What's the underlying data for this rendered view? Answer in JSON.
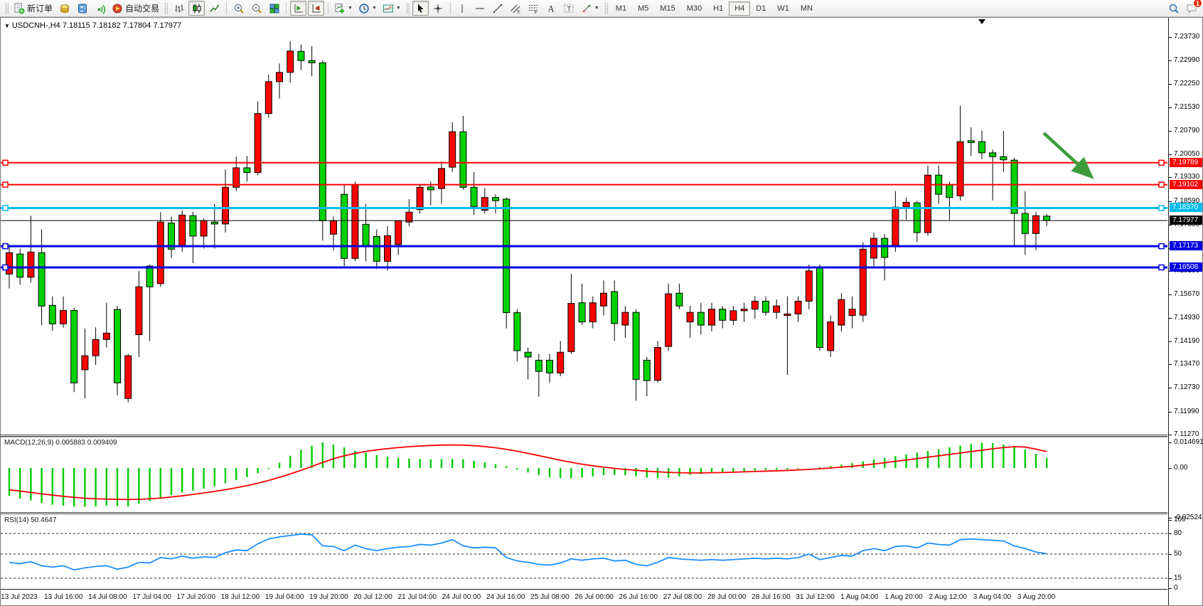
{
  "toolbar": {
    "buttons_left": [
      {
        "name": "new-order",
        "icon": "new-order-icon",
        "label": "新订单"
      },
      {
        "name": "market-watch",
        "icon": "market-watch-icon"
      },
      {
        "name": "data-window",
        "icon": "data-window-icon"
      },
      {
        "name": "navigator",
        "icon": "navigator-icon"
      },
      {
        "name": "autotrading",
        "icon": "autotrading-icon",
        "label": "自动交易"
      }
    ],
    "chart_type_buttons": [
      {
        "name": "bar-chart",
        "icon": "bar-chart-icon"
      },
      {
        "name": "candlestick-chart",
        "icon": "candlestick-icon",
        "active": true
      },
      {
        "name": "line-chart",
        "icon": "line-chart-icon"
      }
    ],
    "zoom_buttons": [
      {
        "name": "zoom-in",
        "icon": "zoom-in-icon"
      },
      {
        "name": "zoom-out",
        "icon": "zoom-out-icon"
      },
      {
        "name": "tile-windows",
        "icon": "tile-windows-icon"
      }
    ],
    "scroll_buttons": [
      {
        "name": "auto-scroll",
        "icon": "auto-scroll-icon",
        "active": true
      },
      {
        "name": "chart-shift",
        "icon": "chart-shift-icon",
        "active": true
      }
    ],
    "dropdown_buttons": [
      {
        "name": "new-chart",
        "icon": "new-chart-icon",
        "dropdown": true
      },
      {
        "name": "period",
        "icon": "clock-icon",
        "dropdown": true
      },
      {
        "name": "templates",
        "icon": "templates-icon",
        "dropdown": true
      }
    ],
    "drawing_buttons": [
      {
        "name": "cursor",
        "icon": "cursor-icon",
        "active": true
      },
      {
        "name": "crosshair",
        "icon": "crosshair-icon"
      },
      {
        "name": "sep"
      },
      {
        "name": "vertical-line",
        "icon": "vline-icon"
      },
      {
        "name": "horizontal-line",
        "icon": "hline-icon"
      },
      {
        "name": "trendline",
        "icon": "trendline-icon"
      },
      {
        "name": "equidistant-channel",
        "icon": "channel-icon"
      },
      {
        "name": "fibonacci",
        "icon": "fibonacci-icon"
      },
      {
        "name": "text",
        "icon": "text-icon"
      },
      {
        "name": "text-label",
        "icon": "label-icon"
      },
      {
        "name": "arrows",
        "icon": "shapes-icon",
        "dropdown": true
      }
    ],
    "timeframes": [
      "M1",
      "M5",
      "M15",
      "M30",
      "H1",
      "H4",
      "D1",
      "W1",
      "MN"
    ],
    "active_timeframe": "H4",
    "right_buttons": [
      {
        "name": "search",
        "icon": "search-icon"
      },
      {
        "name": "notifications",
        "icon": "chat-icon",
        "badge": "1"
      }
    ]
  },
  "chart": {
    "title": "USDCNH-,H4  7.18115 7.18182 7.17804 7.17977",
    "dropdown_glyph": "▼"
  },
  "chart_data": {
    "type": "candlestick",
    "symbol": "USDCNH",
    "timeframe": "H4",
    "ohlc_display": {
      "open": "7.18115",
      "high": "7.18182",
      "low": "7.17804",
      "close": "7.17977"
    },
    "colors": {
      "up": "#FF0000",
      "down": "#00D200",
      "wick": "#000000",
      "line_red": "#FF0000",
      "line_cyan": "#00BBEE",
      "line_blue": "#0000E0",
      "current": "#000000",
      "macd_hist": "#00CC00",
      "macd_signal": "#FF0000",
      "rsi_line": "#1E90FF",
      "arrow": "#3C9C3C"
    },
    "y_axis": {
      "min": 7.1127,
      "max": 7.2373,
      "ticks": [
        "7.23730",
        "7.22990",
        "7.22250",
        "7.21530",
        "7.20790",
        "7.20050",
        "7.19330",
        "7.18590",
        "7.17850",
        "7.17110",
        "7.16390",
        "7.15670",
        "7.14930",
        "7.14190",
        "7.13470",
        "7.12730",
        "7.11990",
        "7.11270"
      ],
      "tick_prices": [
        7.2373,
        7.2299,
        7.2225,
        7.2153,
        7.2079,
        7.2005,
        7.1933,
        7.1859,
        7.1785,
        7.1711,
        7.1639,
        7.1567,
        7.1493,
        7.1419,
        7.1347,
        7.1273,
        7.1199,
        7.1127
      ]
    },
    "x_axis": {
      "labels": [
        "13 Jul 2023",
        "13 Jul 16:00",
        "14 Jul 08:00",
        "17 Jul 04:00",
        "17 Jul 20:00",
        "18 Jul 12:00",
        "19 Jul 04:00",
        "19 Jul 20:00",
        "20 Jul 12:00",
        "21 Jul 04:00",
        "24 Jul 00:00",
        "24 Jul 16:00",
        "25 Jul 08:00",
        "26 Jul 00:00",
        "26 Jul 16:00",
        "27 Jul 08:00",
        "28 Jul 00:00",
        "28 Jul 16:00",
        "31 Jul 12:00",
        "1 Aug 04:00",
        "1 Aug 20:00",
        "2 Aug 12:00",
        "3 Aug 04:00",
        "3 Aug 20:00"
      ]
    },
    "horizontal_lines": [
      {
        "price": 7.19789,
        "label": "7.19789",
        "color": "#FF0000",
        "width": 2
      },
      {
        "price": 7.19102,
        "label": "7.19102",
        "color": "#FF0000",
        "width": 2
      },
      {
        "price": 7.1837,
        "label": "7.18370",
        "color": "#00BBEE",
        "width": 3
      },
      {
        "price": 7.17173,
        "label": "7.17173",
        "color": "#0000E0",
        "width": 3
      },
      {
        "price": 7.16508,
        "label": "7.16508",
        "color": "#0000E0",
        "width": 3
      }
    ],
    "current_price": {
      "value": 7.17977,
      "label": "7.17977",
      "color": "#000000"
    },
    "annotation_arrow": {
      "x1_frac": 0.894,
      "price1": 7.2072,
      "x2_frac": 0.934,
      "price2": 7.1938
    },
    "shift_marker_frac": 0.841,
    "candles": [
      [
        7.163,
        7.1723,
        7.1585,
        7.1697
      ],
      [
        7.1693,
        7.171,
        7.1597,
        7.162
      ],
      [
        7.162,
        7.1813,
        7.1604,
        7.1699
      ],
      [
        7.1697,
        7.177,
        7.147,
        7.153
      ],
      [
        7.1532,
        7.156,
        7.1452,
        7.1474
      ],
      [
        7.1474,
        7.156,
        7.1462,
        7.1516
      ],
      [
        7.1516,
        7.1524,
        7.126,
        7.1289
      ],
      [
        7.133,
        7.1459,
        7.124,
        7.1374
      ],
      [
        7.1374,
        7.1463,
        7.1345,
        7.1425
      ],
      [
        7.1425,
        7.154,
        7.14,
        7.1445
      ],
      [
        7.1519,
        7.153,
        7.125,
        7.1289
      ],
      [
        7.124,
        7.138,
        7.1228,
        7.1374
      ],
      [
        7.144,
        7.164,
        7.137,
        7.159
      ],
      [
        7.1655,
        7.166,
        7.142,
        7.159
      ],
      [
        7.16,
        7.1824,
        7.159,
        7.1793
      ],
      [
        7.179,
        7.181,
        7.168,
        7.1708
      ],
      [
        7.172,
        7.183,
        7.17,
        7.1815
      ],
      [
        7.1813,
        7.1825,
        7.1664,
        7.1749
      ],
      [
        7.1749,
        7.1805,
        7.171,
        7.1797
      ],
      [
        7.1793,
        7.185,
        7.171,
        7.1787
      ],
      [
        7.1787,
        7.1958,
        7.176,
        7.1902
      ],
      [
        7.1902,
        7.1998,
        7.189,
        7.1963
      ],
      [
        7.1963,
        7.2,
        7.192,
        7.1948
      ],
      [
        7.1948,
        7.2171,
        7.194,
        7.2133
      ],
      [
        7.2133,
        7.2255,
        7.212,
        7.2233
      ],
      [
        7.2233,
        7.229,
        7.218,
        7.2262
      ],
      [
        7.2262,
        7.236,
        7.223,
        7.2329
      ],
      [
        7.2328,
        7.235,
        7.227,
        7.2299
      ],
      [
        7.2299,
        7.2344,
        7.225,
        7.2292
      ],
      [
        7.2292,
        7.23,
        7.1735,
        7.1797
      ],
      [
        7.1755,
        7.181,
        7.1704,
        7.1797
      ],
      [
        7.188,
        7.1911,
        7.1655,
        7.1679
      ],
      [
        7.1679,
        7.192,
        7.167,
        7.1911
      ],
      [
        7.1786,
        7.185,
        7.167,
        7.1719
      ],
      [
        7.1748,
        7.177,
        7.1646,
        7.167
      ],
      [
        7.167,
        7.178,
        7.164,
        7.175
      ],
      [
        7.1723,
        7.1797,
        7.169,
        7.1797
      ],
      [
        7.1793,
        7.1865,
        7.178,
        7.1824
      ],
      [
        7.1832,
        7.191,
        7.182,
        7.1902
      ],
      [
        7.1903,
        7.192,
        7.1845,
        7.1894
      ],
      [
        7.1898,
        7.1984,
        7.185,
        7.1961
      ],
      [
        7.1965,
        7.2106,
        7.195,
        7.2076
      ],
      [
        7.2076,
        7.2126,
        7.1895,
        7.1902
      ],
      [
        7.1902,
        7.195,
        7.1815,
        7.1842
      ],
      [
        7.183,
        7.19,
        7.182,
        7.187
      ],
      [
        7.187,
        7.188,
        7.182,
        7.186
      ],
      [
        7.1865,
        7.187,
        7.146,
        7.1509
      ],
      [
        7.1509,
        7.152,
        7.1356,
        7.139
      ],
      [
        7.1385,
        7.14,
        7.13,
        7.137
      ],
      [
        7.136,
        7.138,
        7.1245,
        7.1325
      ],
      [
        7.136,
        7.138,
        7.129,
        7.132
      ],
      [
        7.132,
        7.142,
        7.131,
        7.1385
      ],
      [
        7.1387,
        7.163,
        7.138,
        7.1538
      ],
      [
        7.154,
        7.16,
        7.147,
        7.148
      ],
      [
        7.148,
        7.156,
        7.146,
        7.154
      ],
      [
        7.153,
        7.161,
        7.15,
        7.157
      ],
      [
        7.1575,
        7.161,
        7.142,
        7.1475
      ],
      [
        7.147,
        7.153,
        7.143,
        7.151
      ],
      [
        7.151,
        7.152,
        7.1233,
        7.13
      ],
      [
        7.136,
        7.137,
        7.1247,
        7.1296
      ],
      [
        7.1297,
        7.142,
        7.129,
        7.14
      ],
      [
        7.1403,
        7.16,
        7.139,
        7.1568
      ],
      [
        7.157,
        7.16,
        7.152,
        7.153
      ],
      [
        7.148,
        7.153,
        7.143,
        7.151
      ],
      [
        7.151,
        7.154,
        7.144,
        7.147
      ],
      [
        7.147,
        7.154,
        7.145,
        7.152
      ],
      [
        7.152,
        7.153,
        7.146,
        7.1485
      ],
      [
        7.1485,
        7.153,
        7.147,
        7.1515
      ],
      [
        7.1515,
        7.154,
        7.148,
        7.152
      ],
      [
        7.152,
        7.156,
        7.149,
        7.1545
      ],
      [
        7.1545,
        7.156,
        7.15,
        7.151
      ],
      [
        7.151,
        7.155,
        7.149,
        7.153
      ],
      [
        7.15,
        7.156,
        7.1314,
        7.1505
      ],
      [
        7.1505,
        7.156,
        7.148,
        7.1545
      ],
      [
        7.1545,
        7.166,
        7.152,
        7.164
      ],
      [
        7.165,
        7.166,
        7.139,
        7.14
      ],
      [
        7.139,
        7.15,
        7.137,
        7.148
      ],
      [
        7.147,
        7.157,
        7.145,
        7.155
      ],
      [
        7.15,
        7.156,
        7.146,
        7.152
      ],
      [
        7.1501,
        7.173,
        7.148,
        7.1708
      ],
      [
        7.168,
        7.176,
        7.1655,
        7.1742
      ],
      [
        7.1742,
        7.1755,
        7.161,
        7.1682
      ],
      [
        7.172,
        7.189,
        7.17,
        7.184
      ],
      [
        7.184,
        7.187,
        7.18,
        7.1855
      ],
      [
        7.1853,
        7.186,
        7.173,
        7.176
      ],
      [
        7.176,
        7.197,
        7.175,
        7.194
      ],
      [
        7.194,
        7.197,
        7.185,
        7.188
      ],
      [
        7.191,
        7.192,
        7.18,
        7.187
      ],
      [
        7.1875,
        7.2158,
        7.186,
        7.2045
      ],
      [
        7.2048,
        7.209,
        7.2,
        7.2042
      ],
      [
        7.2045,
        7.208,
        7.199,
        7.201
      ],
      [
        7.201,
        7.202,
        7.186,
        7.1998
      ],
      [
        7.1998,
        7.2078,
        7.195,
        7.1988
      ],
      [
        7.1987,
        7.1995,
        7.172,
        7.182
      ],
      [
        7.182,
        7.189,
        7.169,
        7.1757
      ],
      [
        7.1757,
        7.1825,
        7.1705,
        7.1813
      ],
      [
        7.18115,
        7.18182,
        7.17804,
        7.17977
      ]
    ],
    "macd": {
      "label": "MACD(12,26,9)",
      "value1": "0.005883",
      "value2": "0.009409",
      "scale_max": "0.014691",
      "scale_zero": "0.00",
      "scale_min": "-0.02524",
      "histogram": [
        -0.016,
        -0.0175,
        -0.0185,
        -0.02,
        -0.021,
        -0.0215,
        -0.022,
        -0.0222,
        -0.022,
        -0.0215,
        -0.0218,
        -0.022,
        -0.0205,
        -0.019,
        -0.017,
        -0.0155,
        -0.014,
        -0.013,
        -0.0118,
        -0.0105,
        -0.0088,
        -0.007,
        -0.0052,
        -0.003,
        -0.0005,
        0.003,
        0.007,
        0.0105,
        0.0128,
        0.0147,
        0.0135,
        0.0118,
        0.01,
        0.0088,
        0.0075,
        0.0065,
        0.0058,
        0.0054,
        0.0052,
        0.005,
        0.005,
        0.0052,
        0.005,
        0.0042,
        0.0032,
        0.0022,
        0.001,
        -0.0008,
        -0.0025,
        -0.004,
        -0.0052,
        -0.0058,
        -0.006,
        -0.0055,
        -0.0048,
        -0.0042,
        -0.004,
        -0.0042,
        -0.0048,
        -0.0055,
        -0.0058,
        -0.0055,
        -0.0048,
        -0.004,
        -0.0035,
        -0.003,
        -0.0026,
        -0.0022,
        -0.0018,
        -0.0015,
        -0.0012,
        -0.001,
        -0.0008,
        -0.0005,
        0.0,
        0.0005,
        0.0012,
        0.002,
        0.0028,
        0.0038,
        0.0048,
        0.0058,
        0.0068,
        0.0078,
        0.0088,
        0.0098,
        0.0108,
        0.0118,
        0.0128,
        0.0138,
        0.0145,
        0.0143,
        0.0135,
        0.0122,
        0.0105,
        0.0082,
        0.0059
      ],
      "signal": [
        -0.0125,
        -0.0132,
        -0.014,
        -0.0148,
        -0.0155,
        -0.0162,
        -0.0168,
        -0.0173,
        -0.0176,
        -0.0178,
        -0.0179,
        -0.018,
        -0.0179,
        -0.0176,
        -0.0172,
        -0.0166,
        -0.0159,
        -0.0151,
        -0.0143,
        -0.0134,
        -0.0124,
        -0.0113,
        -0.0101,
        -0.0087,
        -0.0071,
        -0.0053,
        -0.0034,
        -0.0013,
        0.0009,
        0.0032,
        0.0053,
        0.007,
        0.0084,
        0.0095,
        0.0104,
        0.0111,
        0.0117,
        0.0122,
        0.0126,
        0.0129,
        0.0131,
        0.0132,
        0.0131,
        0.0128,
        0.0123,
        0.0116,
        0.0107,
        0.0096,
        0.0084,
        0.0071,
        0.0058,
        0.0045,
        0.0033,
        0.0022,
        0.0013,
        0.0005,
        -0.0002,
        -0.0008,
        -0.0013,
        -0.0018,
        -0.0022,
        -0.0025,
        -0.0027,
        -0.0028,
        -0.0028,
        -0.0027,
        -0.0026,
        -0.0024,
        -0.0022,
        -0.002,
        -0.0018,
        -0.0016,
        -0.0014,
        -0.0011,
        -0.0008,
        -0.0004,
        0.0,
        0.0005,
        0.001,
        0.0016,
        0.0023,
        0.003,
        0.0038,
        0.0046,
        0.0054,
        0.0062,
        0.007,
        0.0078,
        0.0086,
        0.0094,
        0.0102,
        0.011,
        0.0117,
        0.0122,
        0.012,
        0.0108,
        0.0094
      ]
    },
    "rsi": {
      "label": "RSI(14)",
      "value": "50.4647",
      "levels": [
        80,
        50,
        15
      ],
      "scale_labels": [
        "100",
        "80",
        "50",
        "15",
        "0"
      ],
      "values": [
        38,
        36,
        39,
        33,
        31,
        33,
        27,
        30,
        32,
        33,
        28,
        31,
        38,
        37,
        45,
        43,
        47,
        44,
        46,
        45,
        52,
        56,
        55,
        65,
        72,
        75,
        77,
        79,
        78,
        62,
        61,
        55,
        63,
        58,
        55,
        58,
        60,
        61,
        64,
        63,
        66,
        71,
        62,
        59,
        60,
        59,
        45,
        40,
        38,
        35,
        34,
        37,
        43,
        41,
        43,
        44,
        40,
        41,
        35,
        33,
        38,
        45,
        43,
        42,
        41,
        42,
        41,
        42,
        43,
        44,
        43,
        44,
        43,
        45,
        50,
        42,
        45,
        48,
        47,
        55,
        58,
        55,
        61,
        62,
        59,
        66,
        64,
        63,
        71,
        72,
        71,
        70,
        69,
        62,
        58,
        53,
        50.46
      ]
    }
  }
}
